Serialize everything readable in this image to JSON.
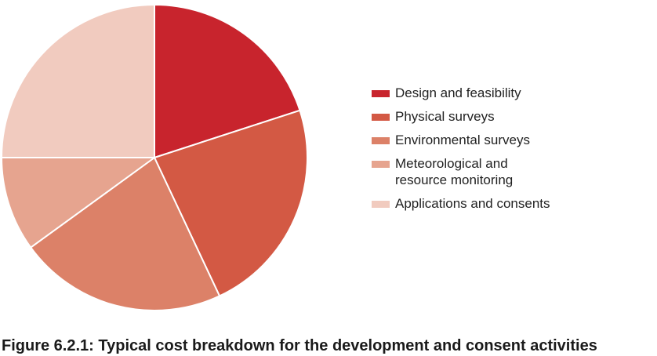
{
  "chart_data": {
    "type": "pie",
    "slices": [
      {
        "label": "Design and feasibility",
        "value": 20,
        "color": "#c8242d"
      },
      {
        "label": "Physical surveys",
        "value": 23,
        "color": "#d35944"
      },
      {
        "label": "Environmental surveys",
        "value": 22,
        "color": "#dc8168"
      },
      {
        "label": "Meteorological and\nresource monitoring",
        "value": 10,
        "color": "#e6a48f"
      },
      {
        "label": "Applications and consents",
        "value": 25,
        "color": "#f1cbbf"
      }
    ],
    "legend_position": "right",
    "value_unit": "%"
  },
  "caption": "Figure 6.2.1: Typical cost breakdown for the development and consent activities"
}
